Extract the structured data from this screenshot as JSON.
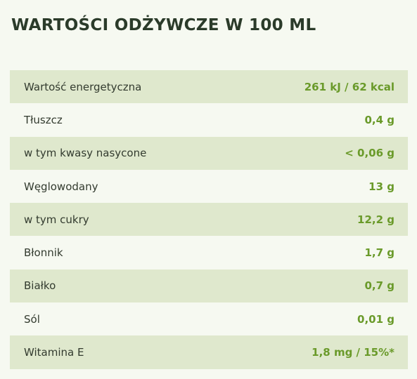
{
  "title": "WARTOŚCI ODŻYWCZE W 100 ML",
  "rows": [
    {
      "label": "Wartość energetyczna",
      "value": "261 kJ / 62 kcal"
    },
    {
      "label": "Tłuszcz",
      "value": "0,4 g"
    },
    {
      "label": "w tym kwasy nasycone",
      "value": "< 0,06 g"
    },
    {
      "label": "Węglowodany",
      "value": "13 g"
    },
    {
      "label": "w tym cukry",
      "value": "12,2 g"
    },
    {
      "label": "Błonnik",
      "value": "1,7 g"
    },
    {
      "label": "Białko",
      "value": "0,7 g"
    },
    {
      "label": "Sól",
      "value": "0,01 g"
    },
    {
      "label": "Witamina E",
      "value": "1,8 mg / 15%*"
    }
  ],
  "colors": {
    "title": "#2b3b2a",
    "label": "#333b2f",
    "value": "#6a9a2a",
    "row_shaded": "#dfe8cd",
    "background": "#f6f9f1"
  }
}
